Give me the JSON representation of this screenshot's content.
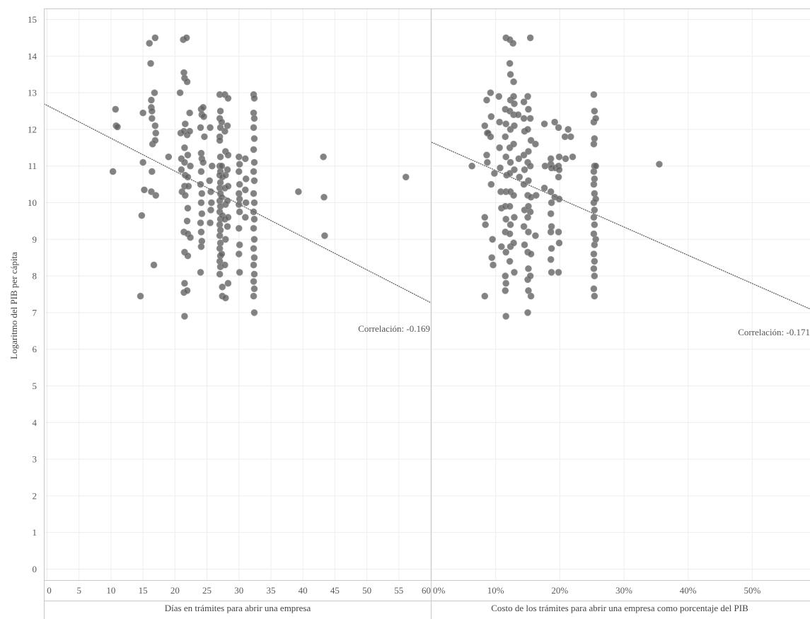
{
  "chart_data": [
    {
      "type": "scatter",
      "xlabel": "Días en trámites para abrir una empresa",
      "ylabel": "Logaritmo del PIB per cápita",
      "xlim": [
        -0.5,
        60
      ],
      "ylim": [
        -0.3,
        15.3
      ],
      "x_ticks": [
        "0",
        "5",
        "10",
        "15",
        "20",
        "25",
        "30",
        "35",
        "40",
        "45",
        "50",
        "55",
        "60"
      ],
      "y_ticks": [
        "0",
        "1",
        "2",
        "3",
        "4",
        "5",
        "6",
        "7",
        "8",
        "9",
        "10",
        "11",
        "12",
        "13",
        "14",
        "15"
      ],
      "trendline": {
        "x": [
          -0.5,
          60
        ],
        "y": [
          12.7,
          7.27
        ]
      },
      "annotation": "Correlación: -0.169",
      "grid": true,
      "points": [
        [
          10.3,
          10.85
        ],
        [
          10.7,
          12.55
        ],
        [
          10.8,
          12.1
        ],
        [
          11.0,
          12.07
        ],
        [
          14.6,
          7.45
        ],
        [
          14.8,
          9.65
        ],
        [
          15.0,
          12.45
        ],
        [
          15.0,
          11.1
        ],
        [
          15.2,
          10.35
        ],
        [
          16.0,
          14.35
        ],
        [
          16.2,
          13.8
        ],
        [
          16.3,
          12.8
        ],
        [
          16.3,
          12.6
        ],
        [
          16.4,
          12.5
        ],
        [
          16.4,
          12.3
        ],
        [
          16.5,
          11.6
        ],
        [
          16.4,
          10.85
        ],
        [
          16.3,
          10.3
        ],
        [
          16.7,
          8.3
        ],
        [
          16.9,
          14.5
        ],
        [
          16.8,
          13.0
        ],
        [
          16.9,
          12.1
        ],
        [
          17.0,
          11.9
        ],
        [
          16.9,
          11.7
        ],
        [
          17.0,
          10.2
        ],
        [
          19.0,
          11.25
        ],
        [
          20.8,
          13.0
        ],
        [
          20.9,
          11.9
        ],
        [
          21.0,
          11.2
        ],
        [
          21.0,
          10.9
        ],
        [
          21.1,
          10.3
        ],
        [
          21.3,
          14.45
        ],
        [
          21.4,
          13.55
        ],
        [
          21.5,
          13.4
        ],
        [
          21.6,
          12.15
        ],
        [
          21.4,
          11.95
        ],
        [
          21.5,
          11.5
        ],
        [
          21.5,
          11.1
        ],
        [
          21.6,
          10.75
        ],
        [
          21.5,
          10.45
        ],
        [
          21.6,
          10.2
        ],
        [
          21.4,
          9.2
        ],
        [
          21.5,
          8.65
        ],
        [
          21.5,
          7.8
        ],
        [
          21.4,
          7.55
        ],
        [
          21.5,
          6.9
        ],
        [
          21.8,
          14.5
        ],
        [
          21.9,
          13.3
        ],
        [
          21.9,
          11.85
        ],
        [
          22.0,
          11.3
        ],
        [
          22.0,
          10.7
        ],
        [
          22.1,
          10.45
        ],
        [
          22.0,
          9.85
        ],
        [
          21.9,
          9.5
        ],
        [
          22.0,
          9.15
        ],
        [
          22.0,
          8.55
        ],
        [
          21.9,
          7.6
        ],
        [
          22.3,
          12.45
        ],
        [
          22.3,
          11.95
        ],
        [
          22.4,
          11.0
        ],
        [
          22.4,
          9.05
        ],
        [
          24.1,
          12.55
        ],
        [
          24.2,
          12.4
        ],
        [
          24.0,
          12.05
        ],
        [
          24.1,
          11.35
        ],
        [
          24.2,
          11.2
        ],
        [
          24.1,
          10.85
        ],
        [
          24.0,
          10.5
        ],
        [
          24.2,
          10.25
        ],
        [
          24.1,
          10.0
        ],
        [
          24.2,
          9.7
        ],
        [
          24.0,
          9.45
        ],
        [
          24.1,
          9.2
        ],
        [
          24.2,
          8.95
        ],
        [
          24.1,
          8.8
        ],
        [
          24.0,
          8.1
        ],
        [
          24.4,
          12.6
        ],
        [
          24.5,
          12.35
        ],
        [
          24.6,
          11.8
        ],
        [
          24.4,
          11.1
        ],
        [
          25.5,
          12.05
        ],
        [
          25.8,
          11.0
        ],
        [
          25.4,
          10.6
        ],
        [
          25.6,
          10.3
        ],
        [
          25.7,
          10.0
        ],
        [
          25.6,
          9.8
        ],
        [
          25.5,
          9.45
        ],
        [
          27.0,
          12.95
        ],
        [
          27.1,
          12.5
        ],
        [
          27.0,
          12.3
        ],
        [
          27.1,
          12.05
        ],
        [
          27.0,
          11.8
        ],
        [
          27.0,
          11.7
        ],
        [
          27.1,
          11.25
        ],
        [
          27.0,
          11.0
        ],
        [
          27.1,
          10.85
        ],
        [
          27.0,
          10.75
        ],
        [
          27.1,
          10.55
        ],
        [
          27.0,
          10.4
        ],
        [
          27.1,
          10.25
        ],
        [
          27.0,
          10.05
        ],
        [
          27.1,
          9.9
        ],
        [
          27.0,
          9.75
        ],
        [
          27.1,
          9.55
        ],
        [
          27.0,
          9.4
        ],
        [
          27.1,
          9.25
        ],
        [
          27.0,
          9.1
        ],
        [
          27.1,
          8.9
        ],
        [
          27.0,
          8.75
        ],
        [
          27.1,
          8.55
        ],
        [
          27.0,
          8.4
        ],
        [
          27.1,
          8.25
        ],
        [
          27.0,
          8.05
        ],
        [
          27.3,
          12.2
        ],
        [
          27.3,
          11.0
        ],
        [
          27.4,
          10.7
        ],
        [
          27.3,
          10.15
        ],
        [
          27.4,
          9.65
        ],
        [
          27.3,
          8.6
        ],
        [
          27.4,
          7.45
        ],
        [
          27.4,
          7.7
        ],
        [
          27.8,
          12.95
        ],
        [
          27.8,
          11.95
        ],
        [
          27.9,
          11.4
        ],
        [
          27.9,
          10.75
        ],
        [
          27.8,
          10.4
        ],
        [
          27.9,
          9.95
        ],
        [
          27.8,
          9.55
        ],
        [
          27.9,
          9.0
        ],
        [
          27.8,
          8.3
        ],
        [
          27.9,
          7.4
        ],
        [
          28.3,
          12.85
        ],
        [
          28.2,
          12.1
        ],
        [
          28.3,
          11.3
        ],
        [
          28.2,
          10.9
        ],
        [
          28.3,
          10.45
        ],
        [
          28.2,
          10.05
        ],
        [
          28.3,
          9.6
        ],
        [
          28.2,
          9.35
        ],
        [
          28.3,
          7.8
        ],
        [
          30.0,
          11.25
        ],
        [
          30.1,
          11.05
        ],
        [
          30.0,
          10.85
        ],
        [
          30.1,
          10.5
        ],
        [
          30.0,
          10.25
        ],
        [
          30.1,
          10.1
        ],
        [
          30.0,
          9.95
        ],
        [
          30.1,
          9.75
        ],
        [
          30.0,
          9.3
        ],
        [
          30.1,
          8.85
        ],
        [
          30.0,
          8.6
        ],
        [
          30.1,
          8.1
        ],
        [
          31.0,
          11.2
        ],
        [
          31.1,
          10.65
        ],
        [
          31.0,
          10.35
        ],
        [
          31.1,
          10.0
        ],
        [
          31.0,
          9.6
        ],
        [
          32.3,
          12.95
        ],
        [
          32.4,
          12.85
        ],
        [
          32.3,
          12.45
        ],
        [
          32.4,
          12.3
        ],
        [
          32.3,
          12.05
        ],
        [
          32.4,
          11.75
        ],
        [
          32.3,
          11.45
        ],
        [
          32.4,
          11.1
        ],
        [
          32.3,
          10.85
        ],
        [
          32.4,
          10.6
        ],
        [
          32.3,
          10.25
        ],
        [
          32.4,
          10.0
        ],
        [
          32.3,
          9.75
        ],
        [
          32.4,
          9.55
        ],
        [
          32.3,
          9.3
        ],
        [
          32.4,
          9.0
        ],
        [
          32.3,
          8.75
        ],
        [
          32.4,
          8.5
        ],
        [
          32.3,
          8.3
        ],
        [
          32.4,
          8.05
        ],
        [
          32.3,
          7.85
        ],
        [
          32.4,
          7.65
        ],
        [
          32.3,
          7.45
        ],
        [
          32.4,
          7.0
        ],
        [
          39.3,
          10.3
        ],
        [
          43.2,
          11.25
        ],
        [
          43.3,
          10.15
        ],
        [
          43.4,
          9.1
        ],
        [
          56.1,
          10.7
        ]
      ]
    },
    {
      "type": "scatter",
      "xlabel": "Costo de los trámites para abrir una empresa como porcentaje del PIB",
      "ylabel": "",
      "xlim": [
        0,
        59
      ],
      "ylim": [
        -0.3,
        15.3
      ],
      "x_ticks": [
        "0%",
        "10%",
        "20%",
        "30%",
        "40%",
        "50%"
      ],
      "trendline": {
        "x": [
          0,
          59
        ],
        "y": [
          11.65,
          7.1
        ]
      },
      "annotation": "Correlación: -0.171",
      "grid": true,
      "points": [
        [
          6.3,
          11.0
        ],
        [
          8.3,
          9.6
        ],
        [
          8.4,
          9.4
        ],
        [
          8.3,
          7.45
        ],
        [
          8.3,
          12.1
        ],
        [
          8.6,
          12.8
        ],
        [
          8.7,
          11.9
        ],
        [
          8.6,
          11.3
        ],
        [
          8.7,
          11.1
        ],
        [
          8.8,
          11.9
        ],
        [
          9.2,
          13.0
        ],
        [
          9.3,
          12.35
        ],
        [
          9.2,
          11.8
        ],
        [
          9.3,
          10.5
        ],
        [
          9.4,
          8.5
        ],
        [
          9.5,
          9.0
        ],
        [
          9.6,
          8.3
        ],
        [
          9.8,
          10.8
        ],
        [
          10.5,
          12.9
        ],
        [
          10.6,
          12.2
        ],
        [
          10.6,
          11.5
        ],
        [
          10.7,
          10.95
        ],
        [
          10.8,
          10.3
        ],
        [
          10.9,
          9.85
        ],
        [
          10.9,
          8.8
        ],
        [
          11.6,
          14.5
        ],
        [
          11.5,
          12.55
        ],
        [
          11.6,
          12.15
        ],
        [
          11.5,
          11.8
        ],
        [
          11.6,
          11.25
        ],
        [
          11.7,
          10.75
        ],
        [
          11.6,
          10.3
        ],
        [
          11.5,
          9.9
        ],
        [
          11.6,
          9.55
        ],
        [
          11.5,
          9.2
        ],
        [
          11.6,
          8.65
        ],
        [
          11.5,
          8.0
        ],
        [
          11.6,
          7.8
        ],
        [
          11.5,
          7.6
        ],
        [
          11.6,
          6.9
        ],
        [
          12.2,
          14.45
        ],
        [
          12.2,
          13.8
        ],
        [
          12.3,
          13.5
        ],
        [
          12.3,
          12.8
        ],
        [
          12.2,
          12.5
        ],
        [
          12.3,
          12.0
        ],
        [
          12.2,
          11.5
        ],
        [
          12.3,
          11.1
        ],
        [
          12.2,
          10.8
        ],
        [
          12.3,
          10.3
        ],
        [
          12.2,
          9.9
        ],
        [
          12.3,
          9.4
        ],
        [
          12.2,
          9.15
        ],
        [
          12.3,
          8.8
        ],
        [
          12.2,
          8.4
        ],
        [
          12.7,
          14.35
        ],
        [
          12.8,
          13.3
        ],
        [
          12.8,
          12.9
        ],
        [
          12.9,
          12.7
        ],
        [
          12.8,
          12.4
        ],
        [
          12.9,
          12.1
        ],
        [
          12.8,
          11.6
        ],
        [
          12.9,
          10.9
        ],
        [
          12.8,
          10.2
        ],
        [
          12.9,
          9.6
        ],
        [
          12.8,
          8.9
        ],
        [
          12.9,
          8.1
        ],
        [
          13.5,
          12.4
        ],
        [
          13.6,
          11.2
        ],
        [
          13.7,
          10.7
        ],
        [
          14.4,
          12.75
        ],
        [
          14.4,
          12.3
        ],
        [
          14.5,
          11.95
        ],
        [
          14.4,
          11.3
        ],
        [
          14.5,
          10.9
        ],
        [
          14.4,
          10.5
        ],
        [
          14.5,
          9.8
        ],
        [
          14.4,
          9.35
        ],
        [
          14.5,
          8.85
        ],
        [
          15.0,
          12.9
        ],
        [
          15.1,
          12.55
        ],
        [
          15.0,
          12.0
        ],
        [
          15.1,
          11.4
        ],
        [
          15.0,
          11.1
        ],
        [
          15.1,
          10.6
        ],
        [
          15.0,
          10.2
        ],
        [
          15.1,
          9.9
        ],
        [
          15.0,
          9.6
        ],
        [
          15.1,
          9.2
        ],
        [
          15.0,
          8.65
        ],
        [
          15.1,
          8.2
        ],
        [
          15.0,
          7.9
        ],
        [
          15.1,
          7.6
        ],
        [
          15.0,
          7.0
        ],
        [
          15.4,
          14.5
        ],
        [
          15.4,
          12.3
        ],
        [
          15.5,
          11.7
        ],
        [
          15.4,
          11.0
        ],
        [
          15.5,
          10.15
        ],
        [
          15.4,
          9.75
        ],
        [
          15.5,
          8.6
        ],
        [
          15.4,
          8.0
        ],
        [
          15.5,
          7.45
        ],
        [
          16.2,
          11.6
        ],
        [
          16.3,
          10.2
        ],
        [
          16.2,
          9.1
        ],
        [
          17.6,
          12.15
        ],
        [
          17.7,
          11.0
        ],
        [
          17.6,
          10.4
        ],
        [
          18.6,
          11.2
        ],
        [
          18.6,
          11.05
        ],
        [
          18.7,
          10.95
        ],
        [
          18.6,
          10.3
        ],
        [
          18.7,
          10.0
        ],
        [
          18.6,
          9.7
        ],
        [
          18.7,
          9.35
        ],
        [
          18.6,
          9.2
        ],
        [
          18.7,
          8.75
        ],
        [
          18.6,
          8.45
        ],
        [
          18.7,
          8.1
        ],
        [
          19.2,
          12.2
        ],
        [
          19.3,
          10.95
        ],
        [
          19.2,
          10.15
        ],
        [
          19.8,
          12.05
        ],
        [
          19.9,
          11.25
        ],
        [
          19.8,
          11.0
        ],
        [
          19.9,
          10.9
        ],
        [
          19.8,
          10.7
        ],
        [
          19.9,
          10.1
        ],
        [
          19.8,
          9.2
        ],
        [
          19.9,
          8.9
        ],
        [
          19.8,
          8.1
        ],
        [
          20.8,
          11.8
        ],
        [
          20.9,
          11.2
        ],
        [
          21.3,
          12.0
        ],
        [
          21.7,
          11.8
        ],
        [
          22.0,
          11.25
        ],
        [
          25.3,
          12.95
        ],
        [
          25.4,
          12.5
        ],
        [
          25.3,
          12.2
        ],
        [
          25.4,
          11.75
        ],
        [
          25.3,
          11.6
        ],
        [
          25.4,
          11.0
        ],
        [
          25.3,
          10.85
        ],
        [
          25.4,
          10.65
        ],
        [
          25.3,
          10.5
        ],
        [
          25.4,
          10.25
        ],
        [
          25.3,
          10.0
        ],
        [
          25.4,
          9.8
        ],
        [
          25.3,
          9.6
        ],
        [
          25.4,
          9.4
        ],
        [
          25.3,
          9.15
        ],
        [
          25.4,
          8.85
        ],
        [
          25.3,
          8.6
        ],
        [
          25.4,
          8.4
        ],
        [
          25.3,
          8.2
        ],
        [
          25.4,
          8.0
        ],
        [
          25.3,
          7.65
        ],
        [
          25.4,
          7.45
        ],
        [
          25.6,
          12.3
        ],
        [
          25.6,
          11.0
        ],
        [
          25.6,
          10.1
        ],
        [
          25.6,
          9.0
        ],
        [
          35.5,
          11.05
        ]
      ]
    }
  ]
}
